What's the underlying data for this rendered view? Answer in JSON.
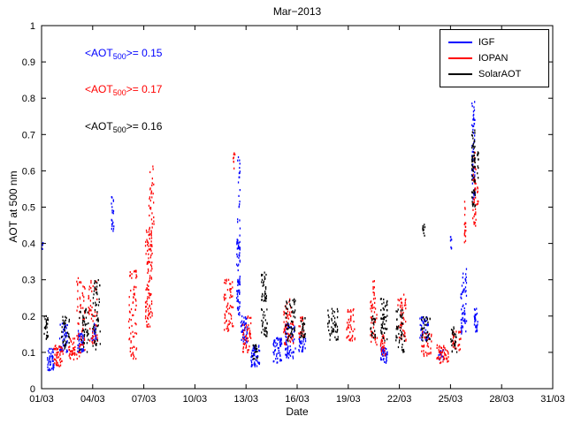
{
  "chart_data": {
    "type": "scatter",
    "title": "Mar−2013",
    "xlabel": "Date",
    "ylabel": "AOT at 500 nm",
    "xlim": [
      1,
      31
    ],
    "ylim": [
      0,
      1
    ],
    "grid": false,
    "x_ticks": [
      {
        "value": 1,
        "label": "01/03"
      },
      {
        "value": 4,
        "label": "04/03"
      },
      {
        "value": 7,
        "label": "07/03"
      },
      {
        "value": 10,
        "label": "10/03"
      },
      {
        "value": 13,
        "label": "13/03"
      },
      {
        "value": 16,
        "label": "16/03"
      },
      {
        "value": 19,
        "label": "19/03"
      },
      {
        "value": 22,
        "label": "22/03"
      },
      {
        "value": 25,
        "label": "25/03"
      },
      {
        "value": 28,
        "label": "28/03"
      },
      {
        "value": 31,
        "label": "31/03"
      }
    ],
    "y_ticks": [
      {
        "value": 0,
        "label": "0"
      },
      {
        "value": 0.1,
        "label": "0.1"
      },
      {
        "value": 0.2,
        "label": "0.2"
      },
      {
        "value": 0.3,
        "label": "0.3"
      },
      {
        "value": 0.4,
        "label": "0.4"
      },
      {
        "value": 0.5,
        "label": "0.5"
      },
      {
        "value": 0.6,
        "label": "0.6"
      },
      {
        "value": 0.7,
        "label": "0.7"
      },
      {
        "value": 0.8,
        "label": "0.8"
      },
      {
        "value": 0.9,
        "label": "0.9"
      },
      {
        "value": 1,
        "label": "1"
      }
    ],
    "legend": {
      "position": "top-right",
      "entries": [
        {
          "label": "IGF",
          "color": "#0000ff"
        },
        {
          "label": "IOPAN",
          "color": "#ff0000"
        },
        {
          "label": "SolarAOT",
          "color": "#000000"
        }
      ]
    },
    "annotations": [
      {
        "prefix": "<AOT",
        "sub": "500",
        "suffix": ">= 0.15",
        "color": "#0000ff",
        "x": 3.55,
        "y": 0.915
      },
      {
        "prefix": "<AOT",
        "sub": "500",
        "suffix": ">= 0.17",
        "color": "#ff0000",
        "x": 3.55,
        "y": 0.815
      },
      {
        "prefix": "<AOT",
        "sub": "500",
        "suffix": ">= 0.16",
        "color": "#000000",
        "x": 3.55,
        "y": 0.712
      }
    ],
    "clusters_format": "[day_start, day_end, aot_min, aot_max, n_points]",
    "series": [
      {
        "name": "IGF",
        "color": "#0000ff",
        "marker": "dot",
        "clusters": [
          [
            1.0,
            1.1,
            0.38,
            0.41,
            5
          ],
          [
            1.35,
            1.75,
            0.05,
            0.11,
            45
          ],
          [
            2.05,
            2.55,
            0.1,
            0.18,
            50
          ],
          [
            3.1,
            3.5,
            0.1,
            0.17,
            40
          ],
          [
            3.9,
            4.2,
            0.13,
            0.18,
            25
          ],
          [
            5.1,
            5.25,
            0.42,
            0.53,
            20
          ],
          [
            12.45,
            12.65,
            0.2,
            0.42,
            70
          ],
          [
            12.5,
            12.65,
            0.42,
            0.65,
            22
          ],
          [
            12.7,
            13.1,
            0.12,
            0.2,
            45
          ],
          [
            13.3,
            13.8,
            0.06,
            0.12,
            50
          ],
          [
            14.6,
            15.1,
            0.07,
            0.14,
            55
          ],
          [
            15.3,
            15.9,
            0.08,
            0.18,
            55
          ],
          [
            16.1,
            16.5,
            0.1,
            0.15,
            30
          ],
          [
            20.9,
            21.3,
            0.07,
            0.12,
            40
          ],
          [
            23.2,
            23.7,
            0.13,
            0.2,
            40
          ],
          [
            24.3,
            24.6,
            0.08,
            0.11,
            15
          ],
          [
            25.0,
            25.1,
            0.38,
            0.42,
            8
          ],
          [
            25.6,
            25.95,
            0.15,
            0.33,
            60
          ],
          [
            26.25,
            26.45,
            0.52,
            0.79,
            55
          ],
          [
            26.4,
            26.6,
            0.15,
            0.22,
            28
          ]
        ]
      },
      {
        "name": "IOPAN",
        "color": "#ff0000",
        "marker": "dot",
        "clusters": [
          [
            1.7,
            2.3,
            0.06,
            0.12,
            50
          ],
          [
            2.6,
            3.0,
            0.08,
            0.14,
            35
          ],
          [
            3.05,
            3.55,
            0.08,
            0.31,
            60
          ],
          [
            3.75,
            4.3,
            0.12,
            0.3,
            55
          ],
          [
            6.1,
            6.6,
            0.08,
            0.33,
            70
          ],
          [
            7.1,
            7.5,
            0.17,
            0.45,
            110
          ],
          [
            7.3,
            7.6,
            0.45,
            0.62,
            30
          ],
          [
            11.7,
            12.25,
            0.15,
            0.3,
            60
          ],
          [
            12.25,
            12.35,
            0.6,
            0.66,
            8
          ],
          [
            12.8,
            13.3,
            0.1,
            0.2,
            45
          ],
          [
            15.2,
            15.8,
            0.12,
            0.25,
            55
          ],
          [
            16.1,
            16.4,
            0.14,
            0.2,
            25
          ],
          [
            18.9,
            19.4,
            0.13,
            0.22,
            40
          ],
          [
            20.3,
            20.7,
            0.12,
            0.25,
            40
          ],
          [
            20.45,
            20.55,
            0.25,
            0.3,
            8
          ],
          [
            20.9,
            21.2,
            0.09,
            0.15,
            25
          ],
          [
            21.9,
            22.4,
            0.13,
            0.26,
            45
          ],
          [
            23.3,
            23.9,
            0.09,
            0.16,
            35
          ],
          [
            24.2,
            24.9,
            0.07,
            0.12,
            45
          ],
          [
            25.1,
            25.6,
            0.1,
            0.16,
            30
          ],
          [
            25.8,
            25.95,
            0.4,
            0.55,
            18
          ],
          [
            26.3,
            26.5,
            0.44,
            0.65,
            45
          ],
          [
            26.55,
            26.65,
            0.5,
            0.56,
            8
          ]
        ]
      },
      {
        "name": "SolarAOT",
        "color": "#000000",
        "marker": "dot",
        "clusters": [
          [
            1.15,
            1.4,
            0.13,
            0.2,
            25
          ],
          [
            2.15,
            2.65,
            0.11,
            0.2,
            40
          ],
          [
            3.2,
            3.75,
            0.1,
            0.22,
            45
          ],
          [
            4.0,
            4.45,
            0.1,
            0.3,
            55
          ],
          [
            13.4,
            13.7,
            0.07,
            0.12,
            18
          ],
          [
            13.9,
            14.2,
            0.24,
            0.32,
            35
          ],
          [
            13.9,
            14.25,
            0.14,
            0.22,
            30
          ],
          [
            15.3,
            15.9,
            0.13,
            0.25,
            55
          ],
          [
            16.2,
            16.5,
            0.14,
            0.2,
            25
          ],
          [
            17.8,
            18.4,
            0.13,
            0.22,
            50
          ],
          [
            20.3,
            20.6,
            0.14,
            0.2,
            22
          ],
          [
            20.9,
            21.3,
            0.13,
            0.25,
            50
          ],
          [
            21.8,
            22.3,
            0.1,
            0.22,
            50
          ],
          [
            23.35,
            23.5,
            0.42,
            0.46,
            10
          ],
          [
            23.3,
            23.8,
            0.13,
            0.2,
            30
          ],
          [
            25.0,
            25.4,
            0.1,
            0.17,
            30
          ],
          [
            26.25,
            26.45,
            0.5,
            0.72,
            65
          ],
          [
            26.55,
            26.65,
            0.58,
            0.66,
            12
          ]
        ]
      }
    ]
  }
}
